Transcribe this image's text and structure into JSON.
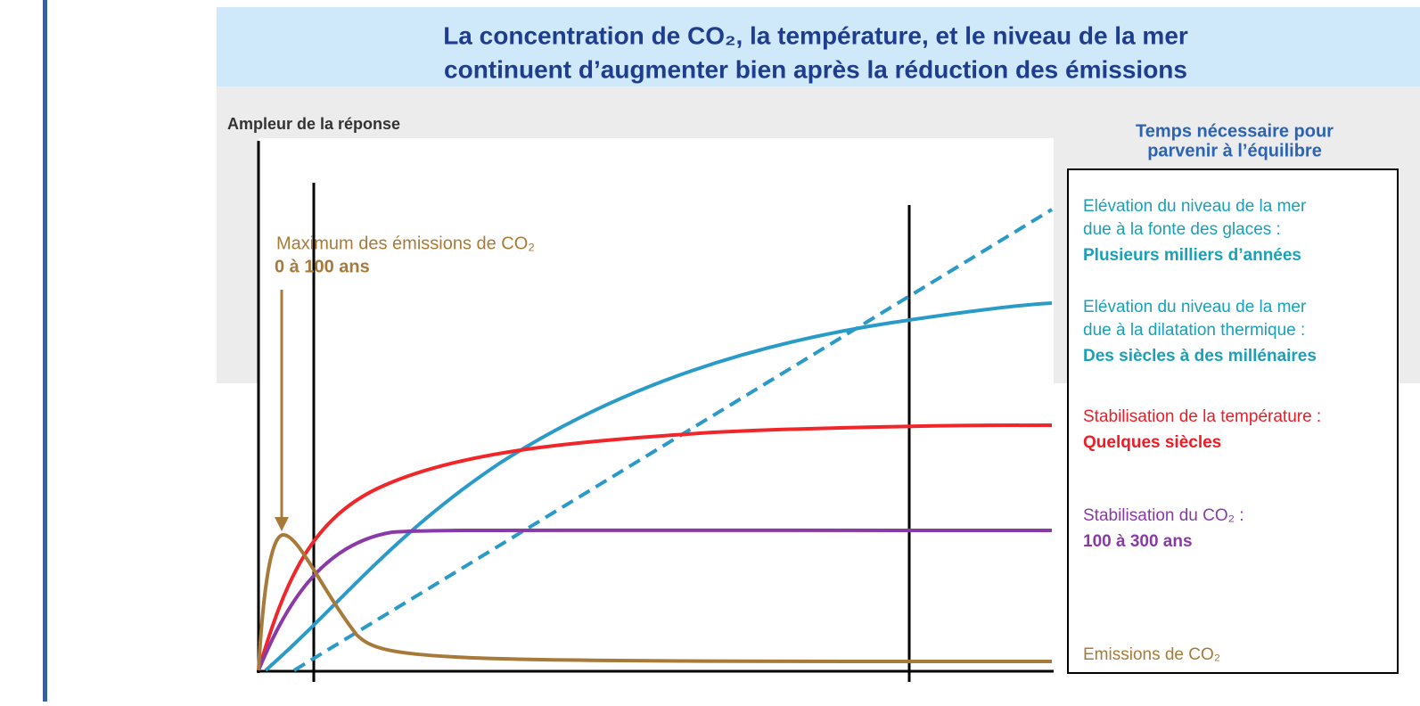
{
  "title": [
    "La concentration de CO₂, la température, et le niveau de la mer",
    "continuent d’augmenter bien après la réduction des émissions"
  ],
  "y_label": "Ampleur de la réponse",
  "annotation": {
    "text": "Maximum des émissions de CO₂",
    "period": "0 à 100 ans"
  },
  "legend": {
    "title": [
      "Temps nécessaire pour",
      "parvenir à l’équilibre"
    ],
    "items": [
      {
        "lines": [
          "Elévation du niveau de la mer",
          "due à la fonte des glaces :"
        ],
        "duration": "Plusieurs milliers d’années"
      },
      {
        "lines": [
          "Elévation du niveau de la mer",
          "due à la dilatation thermique :"
        ],
        "duration": "Des siècles à des millénaires"
      },
      {
        "lines": [
          "Stabilisation de la température :"
        ],
        "duration": "Quelques siècles"
      },
      {
        "lines": [
          "Stabilisation du CO₂ :"
        ],
        "duration": "100 à 300 ans"
      }
    ]
  },
  "bottom_label": "Emissions de CO₂"
}
